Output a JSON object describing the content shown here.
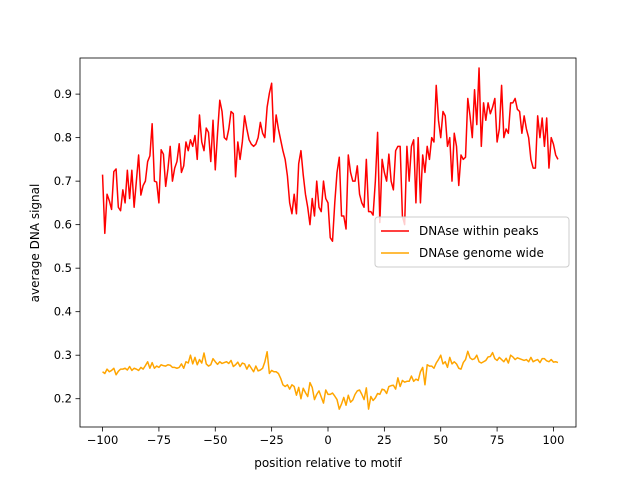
{
  "chart_data": {
    "type": "line",
    "title": "",
    "xlabel": "position relative to motif",
    "ylabel": "average DNA signal",
    "xlim": [
      -110,
      110
    ],
    "ylim": [
      0.135,
      0.983
    ],
    "xticks": [
      -100,
      -75,
      -50,
      -25,
      0,
      25,
      50,
      75,
      100
    ],
    "xtick_labels": [
      "−100",
      "−75",
      "−50",
      "−25",
      "0",
      "25",
      "50",
      "75",
      "100"
    ],
    "yticks": [
      0.2,
      0.3,
      0.4,
      0.5,
      0.6,
      0.7,
      0.8,
      0.9
    ],
    "ytick_labels": [
      "0.2",
      "0.3",
      "0.4",
      "0.5",
      "0.6",
      "0.7",
      "0.8",
      "0.9"
    ],
    "grid": false,
    "legend_position": "center-right",
    "x_start": -100,
    "x_step": 1,
    "series": [
      {
        "name": "DNAse within peaks",
        "color": "#ff0000",
        "values": [
          0.715,
          0.58,
          0.67,
          0.655,
          0.635,
          0.722,
          0.728,
          0.64,
          0.632,
          0.68,
          0.65,
          0.725,
          0.66,
          0.725,
          0.64,
          0.7,
          0.76,
          0.668,
          0.69,
          0.7,
          0.745,
          0.758,
          0.832,
          0.7,
          0.698,
          0.65,
          0.772,
          0.762,
          0.688,
          0.728,
          0.78,
          0.7,
          0.73,
          0.745,
          0.786,
          0.72,
          0.735,
          0.79,
          0.77,
          0.795,
          0.78,
          0.805,
          0.75,
          0.852,
          0.79,
          0.77,
          0.822,
          0.812,
          0.745,
          0.84,
          0.726,
          0.81,
          0.886,
          0.86,
          0.8,
          0.795,
          0.82,
          0.86,
          0.855,
          0.71,
          0.79,
          0.75,
          0.79,
          0.85,
          0.82,
          0.795,
          0.785,
          0.78,
          0.785,
          0.8,
          0.835,
          0.81,
          0.8,
          0.87,
          0.902,
          0.925,
          0.79,
          0.852,
          0.82,
          0.795,
          0.77,
          0.75,
          0.712,
          0.65,
          0.625,
          0.67,
          0.625,
          0.74,
          0.77,
          0.715,
          0.67,
          0.64,
          0.6,
          0.66,
          0.62,
          0.7,
          0.64,
          0.63,
          0.7,
          0.66,
          0.65,
          0.57,
          0.562,
          0.65,
          0.72,
          0.755,
          0.62,
          0.62,
          0.59,
          0.76,
          0.72,
          0.7,
          0.7,
          0.735,
          0.67,
          0.65,
          0.64,
          0.75,
          0.63,
          0.63,
          0.622,
          0.7,
          0.812,
          0.605,
          0.75,
          0.72,
          0.7,
          0.762,
          0.7,
          0.68,
          0.77,
          0.78,
          0.78,
          0.62,
          0.6,
          0.78,
          0.7,
          0.78,
          0.795,
          0.65,
          0.8,
          0.65,
          0.76,
          0.72,
          0.78,
          0.75,
          0.8,
          0.79,
          0.92,
          0.84,
          0.8,
          0.86,
          0.85,
          0.78,
          0.8,
          0.7,
          0.81,
          0.78,
          0.69,
          0.76,
          0.75,
          0.755,
          0.89,
          0.85,
          0.8,
          0.91,
          0.83,
          0.96,
          0.78,
          0.88,
          0.84,
          0.88,
          0.855,
          0.87,
          0.89,
          0.79,
          0.82,
          0.92,
          0.8,
          0.82,
          0.81,
          0.88,
          0.88,
          0.89,
          0.865,
          0.86,
          0.81,
          0.85,
          0.82,
          0.8,
          0.75,
          0.73,
          0.73,
          0.85,
          0.8,
          0.845,
          0.78,
          0.845,
          0.73,
          0.8,
          0.785,
          0.76,
          0.75
        ]
      },
      {
        "name": "DNAse genome wide",
        "color": "#ffa500",
        "values": [
          0.262,
          0.258,
          0.268,
          0.262,
          0.265,
          0.27,
          0.255,
          0.263,
          0.268,
          0.268,
          0.27,
          0.266,
          0.274,
          0.265,
          0.27,
          0.268,
          0.265,
          0.272,
          0.268,
          0.276,
          0.285,
          0.27,
          0.283,
          0.27,
          0.275,
          0.272,
          0.278,
          0.276,
          0.275,
          0.278,
          0.277,
          0.272,
          0.272,
          0.27,
          0.272,
          0.28,
          0.27,
          0.285,
          0.282,
          0.3,
          0.28,
          0.295,
          0.278,
          0.29,
          0.282,
          0.305,
          0.28,
          0.275,
          0.278,
          0.292,
          0.285,
          0.279,
          0.285,
          0.281,
          0.283,
          0.285,
          0.281,
          0.288,
          0.274,
          0.278,
          0.284,
          0.274,
          0.282,
          0.28,
          0.268,
          0.278,
          0.27,
          0.262,
          0.275,
          0.264,
          0.266,
          0.27,
          0.285,
          0.308,
          0.258,
          0.265,
          0.262,
          0.262,
          0.258,
          0.247,
          0.232,
          0.228,
          0.232,
          0.222,
          0.232,
          0.228,
          0.208,
          0.226,
          0.2,
          0.224,
          0.214,
          0.205,
          0.237,
          0.226,
          0.198,
          0.21,
          0.218,
          0.204,
          0.19,
          0.22,
          0.21,
          0.21,
          0.213,
          0.206,
          0.198,
          0.176,
          0.188,
          0.203,
          0.185,
          0.208,
          0.192,
          0.197,
          0.21,
          0.218,
          0.22,
          0.21,
          0.198,
          0.225,
          0.176,
          0.205,
          0.196,
          0.202,
          0.212,
          0.21,
          0.222,
          0.22,
          0.212,
          0.228,
          0.23,
          0.231,
          0.222,
          0.248,
          0.228,
          0.242,
          0.238,
          0.24,
          0.24,
          0.252,
          0.24,
          0.245,
          0.242,
          0.262,
          0.272,
          0.232,
          0.278,
          0.275,
          0.275,
          0.27,
          0.282,
          0.29,
          0.3,
          0.28,
          0.285,
          0.272,
          0.295,
          0.28,
          0.285,
          0.28,
          0.27,
          0.268,
          0.283,
          0.29,
          0.309,
          0.294,
          0.29,
          0.292,
          0.3,
          0.285,
          0.282,
          0.285,
          0.288,
          0.296,
          0.297,
          0.306,
          0.292,
          0.288,
          0.295,
          0.29,
          0.285,
          0.293,
          0.282,
          0.3,
          0.296,
          0.29,
          0.294,
          0.292,
          0.29,
          0.288,
          0.29,
          0.285,
          0.295,
          0.285,
          0.288,
          0.29,
          0.283,
          0.292,
          0.292,
          0.287,
          0.285,
          0.29,
          0.284,
          0.285,
          0.283
        ]
      }
    ]
  }
}
